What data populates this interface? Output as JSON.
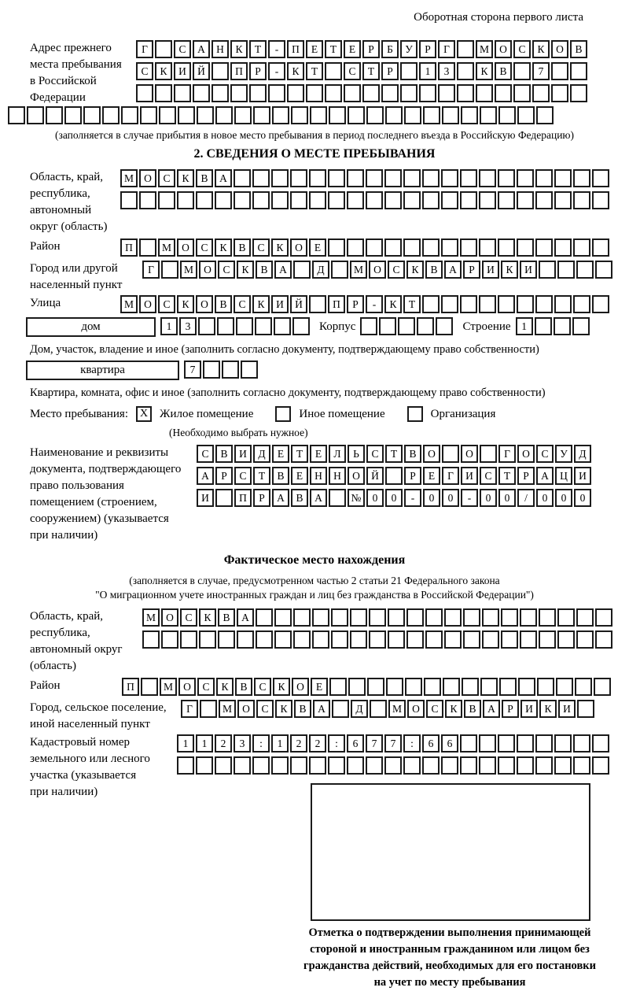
{
  "header": {
    "note": "Оборотная сторона первого листа"
  },
  "prev_address": {
    "label": "Адрес прежнего\nместа пребывания\nв Российской\nФедерации",
    "row1": {
      "text": "Г САНКТ-ПЕТЕРБУРГ МОСКОВ",
      "len": 24
    },
    "row2": {
      "text": "СКИЙ ПР-КТ СТР 13 КВ 7",
      "len": 24
    },
    "row3": {
      "text": "",
      "len": 24
    },
    "row4": {
      "text": "",
      "len": 29
    },
    "note": "(заполняется в случае прибытия в новое место пребывания в период последнего въезда в Российскую Федерацию)"
  },
  "section2": {
    "title": "2. СВЕДЕНИЯ О МЕСТЕ ПРЕБЫВАНИЯ",
    "oblast": {
      "label": "Область, край,\nреспублика,\nавтономный\nокруг (область)",
      "row1": {
        "text": "МОСКВА",
        "len": 26
      },
      "row2": {
        "text": "",
        "len": 26
      }
    },
    "raion": {
      "label": "Район",
      "row": {
        "text": "П МОСКВСКОЕ",
        "len": 26
      }
    },
    "gorod": {
      "label": "Город или другой\nнаселенный пункт",
      "row": {
        "text": "Г МОСКВА Д МОСКВАРИКИ",
        "len": 25
      }
    },
    "ulitsa": {
      "label": "Улица",
      "row": {
        "text": "МОСКОВСКИЙ ПР-КТ",
        "len": 26
      }
    },
    "dom": {
      "box_label": "дом",
      "number": {
        "text": "13",
        "len": 8
      },
      "korpus_label": "Корпус",
      "korpus": {
        "text": "",
        "len": 5
      },
      "stroenie_label": "Строение",
      "stroenie": {
        "text": "1",
        "len": 4
      },
      "caption": "Дом, участок, владение и иное (заполнить согласно документу, подтверждающему право собственности)"
    },
    "kvartira": {
      "box_label": "квартира",
      "number": {
        "text": "7",
        "len": 4
      },
      "caption": "Квартира, комната, офис и иное (заполнить согласно документу, подтверждающему право собственности)"
    },
    "stay_type": {
      "label": "Место пребывания:",
      "option1_mark": "X",
      "option1": "Жилое помещение",
      "option2": "Иное помещение",
      "option3": "Организация",
      "note": "(Необходимо выбрать нужное)"
    },
    "doc": {
      "label": "Наименование и реквизиты\nдокумента, подтверждающего\nправо пользования\nпомещением (строением,\nсооружением) (указывается\nпри наличии)",
      "row1": {
        "text": "СВИДЕТЕЛЬСТВО О ГОСУД",
        "len": 21
      },
      "row2": {
        "text": "АРСТВЕННОЙ РЕГИСТРАЦИ",
        "len": 21
      },
      "row3": {
        "text": "И ПРАВА №00-00-00/000",
        "len": 21
      }
    }
  },
  "fact": {
    "title": "Фактическое место нахождения",
    "note1": "(заполняется в случае, предусмотренном частью 2 статьи 21 Федерального закона",
    "note2": "\"О миграционном учете иностранных граждан и лиц без гражданства в Российской Федерации\")",
    "oblast": {
      "label": "Область, край,\nреспублика,\nавтономный округ\n(область)",
      "row1": {
        "text": "МОСКВА",
        "len": 25
      },
      "row2": {
        "text": "",
        "len": 25
      }
    },
    "raion": {
      "label": "Район",
      "row": {
        "text": "П МОСКВСКОЕ",
        "len": 26
      }
    },
    "gorod": {
      "label": "Город, сельское поселение,\nиной населенный пункт",
      "row": {
        "text": "Г МОСКВА Д МОСКВАРИКИ",
        "len": 22
      }
    },
    "kadastr": {
      "label": "Кадастровый номер\nземельного или лесного\nучастка (указывается\nпри наличии)",
      "row1": {
        "text": "1123:122:677:66",
        "len": 23
      },
      "row2": {
        "text": "",
        "len": 23
      }
    }
  },
  "stamp": {
    "caption": "Отметка о подтверждении выполнения принимающей стороной и иностранным гражданином или лицом без гражданства действий, необходимых для его постановки на учет по месту пребывания"
  }
}
